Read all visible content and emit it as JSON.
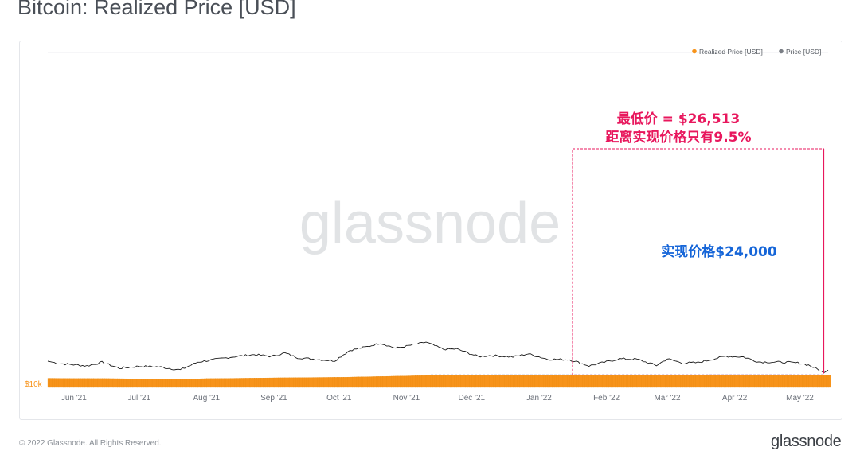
{
  "header": {
    "title": "Bitcoin: Realized Price [USD]"
  },
  "footer": {
    "copyright": "© 2022 Glassnode. All Rights Reserved.",
    "brand": "glassnode"
  },
  "colors": {
    "realized": "#f7931a",
    "price": "#1a1a1a",
    "annotation_pink": "#e8175d",
    "annotation_blue": "#1565d8",
    "grid": "#eceef1",
    "tick": "#6b7079"
  },
  "chart_data": {
    "type": "area",
    "title": "Bitcoin: Realized Price [USD]",
    "watermark": "glassnode",
    "x_ticks": [
      "Jun '21",
      "Jul '21",
      "Aug '21",
      "Sep '21",
      "Oct '21",
      "Nov '21",
      "Dec '21",
      "Jan '22",
      "Feb '22",
      "Mar '22",
      "Apr '22",
      "May '22"
    ],
    "y_ticks": [
      "$10k"
    ],
    "legend": {
      "position": "top-right",
      "items": [
        "Realized Price [USD]",
        "Price [USD]"
      ]
    },
    "series": [
      {
        "name": "Realized Price [USD]",
        "kind": "area",
        "points": [
          [
            "2021-05-20",
            20200
          ],
          [
            "2021-06-01",
            20000
          ],
          [
            "2021-06-15",
            19900
          ],
          [
            "2021-07-01",
            19500
          ],
          [
            "2021-07-15",
            19400
          ],
          [
            "2021-07-25",
            19400
          ],
          [
            "2021-08-01",
            19900
          ],
          [
            "2021-08-15",
            20200
          ],
          [
            "2021-09-01",
            20700
          ],
          [
            "2021-09-15",
            21000
          ],
          [
            "2021-10-01",
            21300
          ],
          [
            "2021-10-15",
            22000
          ],
          [
            "2021-11-01",
            22900
          ],
          [
            "2021-11-15",
            23700
          ],
          [
            "2021-12-01",
            24100
          ],
          [
            "2021-12-15",
            24100
          ],
          [
            "2022-01-01",
            24100
          ],
          [
            "2022-02-01",
            24050
          ],
          [
            "2022-03-01",
            24050
          ],
          [
            "2022-04-01",
            24100
          ],
          [
            "2022-05-01",
            24100
          ],
          [
            "2022-05-14",
            23900
          ]
        ]
      },
      {
        "name": "Price [USD]",
        "kind": "line",
        "points": [
          [
            "2021-05-20",
            41000
          ],
          [
            "2021-05-25",
            38000
          ],
          [
            "2021-06-01",
            36500
          ],
          [
            "2021-06-07",
            35000
          ],
          [
            "2021-06-14",
            39500
          ],
          [
            "2021-06-22",
            32000
          ],
          [
            "2021-07-01",
            34500
          ],
          [
            "2021-07-10",
            33800
          ],
          [
            "2021-07-20",
            30000
          ],
          [
            "2021-07-28",
            39800
          ],
          [
            "2021-08-07",
            44000
          ],
          [
            "2021-08-14",
            47000
          ],
          [
            "2021-08-23",
            49700
          ],
          [
            "2021-08-31",
            47200
          ],
          [
            "2021-09-06",
            51800
          ],
          [
            "2021-09-12",
            45500
          ],
          [
            "2021-09-22",
            43000
          ],
          [
            "2021-09-29",
            41500
          ],
          [
            "2021-10-06",
            55500
          ],
          [
            "2021-10-15",
            61500
          ],
          [
            "2021-10-20",
            66000
          ],
          [
            "2021-10-27",
            58500
          ],
          [
            "2021-11-01",
            61500
          ],
          [
            "2021-11-10",
            67500
          ],
          [
            "2021-11-18",
            57000
          ],
          [
            "2021-11-24",
            57500
          ],
          [
            "2021-12-04",
            47000
          ],
          [
            "2021-12-10",
            48500
          ],
          [
            "2021-12-20",
            46500
          ],
          [
            "2021-12-27",
            50700
          ],
          [
            "2022-01-05",
            43500
          ],
          [
            "2022-01-15",
            43000
          ],
          [
            "2022-01-24",
            35000
          ],
          [
            "2022-02-07",
            44000
          ],
          [
            "2022-02-15",
            43500
          ],
          [
            "2022-02-24",
            35500
          ],
          [
            "2022-03-01",
            44000
          ],
          [
            "2022-03-08",
            38500
          ],
          [
            "2022-03-15",
            39000
          ],
          [
            "2022-03-28",
            47500
          ],
          [
            "2022-04-05",
            46500
          ],
          [
            "2022-04-12",
            40000
          ],
          [
            "2022-04-25",
            39500
          ],
          [
            "2022-05-01",
            38500
          ],
          [
            "2022-05-05",
            36000
          ],
          [
            "2022-05-09",
            31000
          ],
          [
            "2022-05-11",
            28500
          ],
          [
            "2022-05-12",
            26513
          ],
          [
            "2022-05-14",
            29800
          ]
        ]
      }
    ],
    "annotations": [
      {
        "text_line1": "最低价 = $26,513",
        "text_line2": "距离实现价格只有9.5%",
        "color": "#e8175d",
        "low_value": 26513
      },
      {
        "text": "实现价格$24,000",
        "color": "#1565d8",
        "value": 24000
      }
    ]
  }
}
